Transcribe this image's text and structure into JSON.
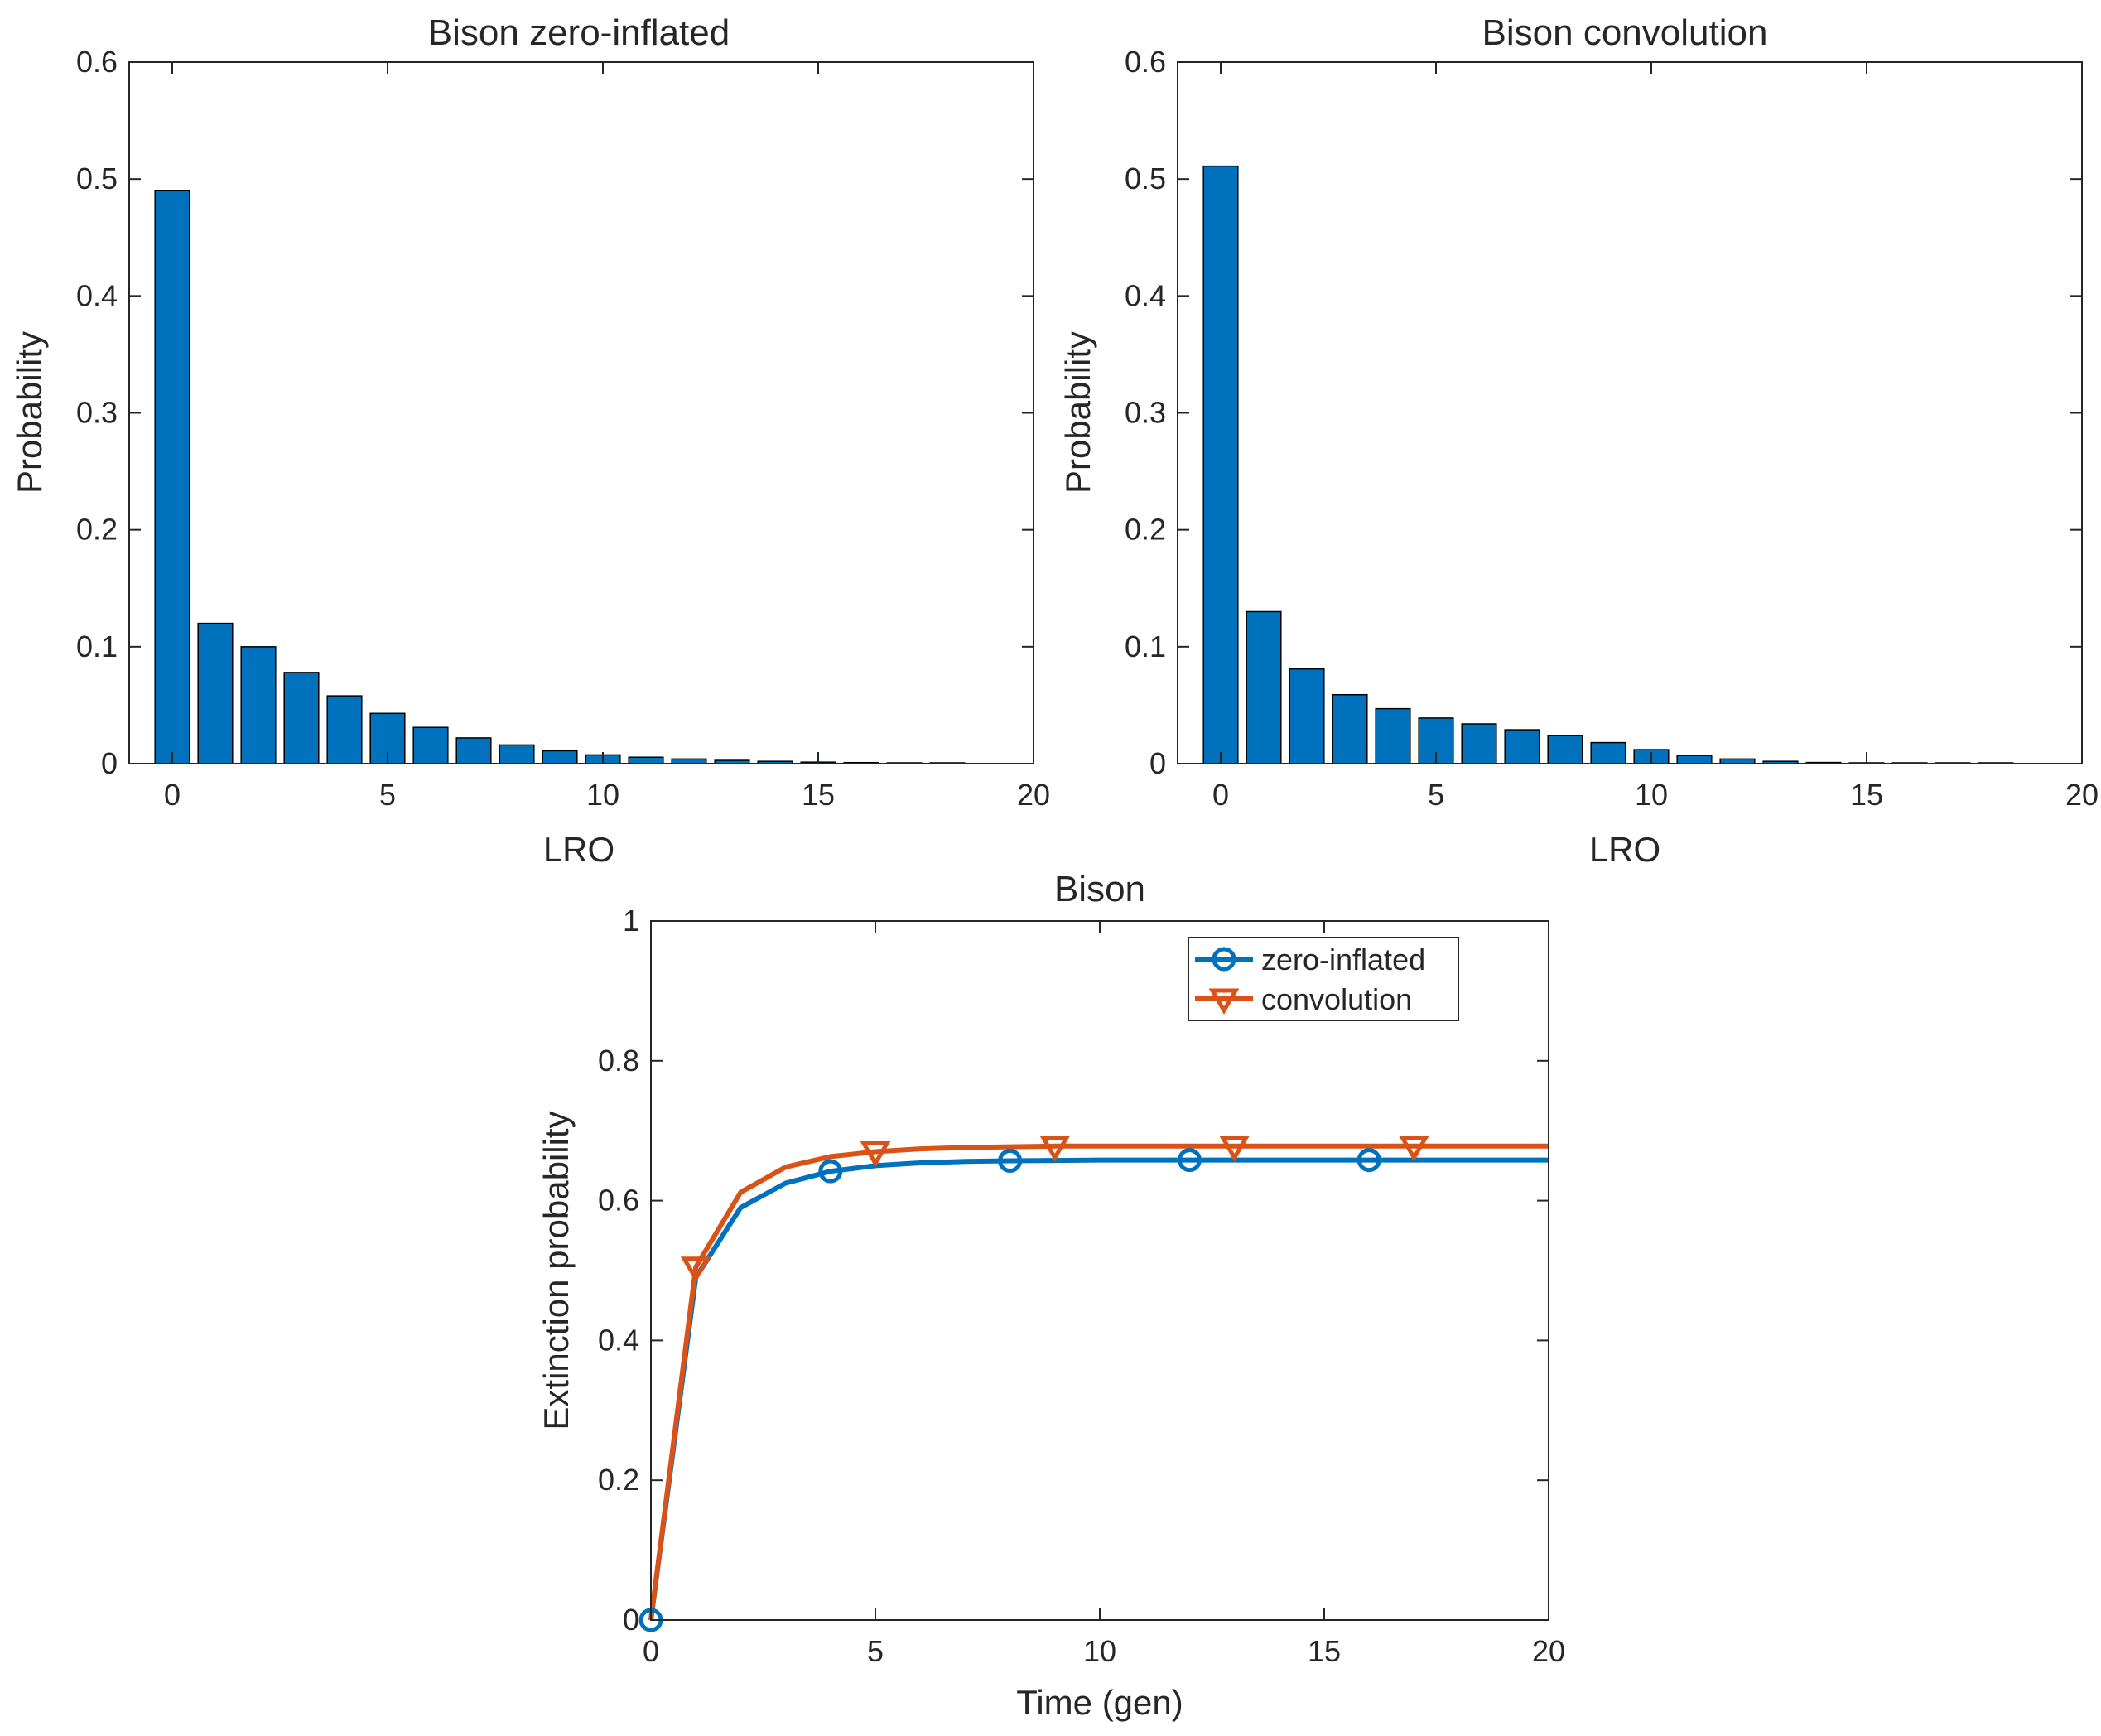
{
  "colors": {
    "series_blue": "#0072BD",
    "series_orange": "#D95319",
    "axis": "#262626"
  },
  "chart_data": [
    {
      "type": "bar",
      "title": "Bison zero-inflated",
      "xlabel": "LRO",
      "ylabel": "Probability",
      "xlim": [
        -1,
        20
      ],
      "ylim": [
        0,
        0.6
      ],
      "xticks": [
        0,
        5,
        10,
        15,
        20
      ],
      "yticks": [
        0,
        0.1,
        0.2,
        0.3,
        0.4,
        0.5,
        0.6
      ],
      "xtick_labels": [
        "0",
        "5",
        "10",
        "15",
        "20"
      ],
      "ytick_labels": [
        "0",
        "0.1",
        "0.2",
        "0.3",
        "0.4",
        "0.5",
        "0.6"
      ],
      "categories": [
        0,
        1,
        2,
        3,
        4,
        5,
        6,
        7,
        8,
        9,
        10,
        11,
        12,
        13,
        14,
        15,
        16,
        17,
        18
      ],
      "values": [
        0.49,
        0.12,
        0.1,
        0.078,
        0.058,
        0.043,
        0.031,
        0.022,
        0.016,
        0.011,
        0.0075,
        0.0055,
        0.004,
        0.0028,
        0.002,
        0.0013,
        0.0009,
        0.0006,
        0.0004
      ],
      "color": "#0072BD"
    },
    {
      "type": "bar",
      "title": "Bison convolution",
      "xlabel": "LRO",
      "ylabel": "Probability",
      "xlim": [
        -1,
        20
      ],
      "ylim": [
        0,
        0.6
      ],
      "xticks": [
        0,
        5,
        10,
        15,
        20
      ],
      "yticks": [
        0,
        0.1,
        0.2,
        0.3,
        0.4,
        0.5,
        0.6
      ],
      "xtick_labels": [
        "0",
        "5",
        "10",
        "15",
        "20"
      ],
      "ytick_labels": [
        "0",
        "0.1",
        "0.2",
        "0.3",
        "0.4",
        "0.5",
        "0.6"
      ],
      "categories": [
        0,
        1,
        2,
        3,
        4,
        5,
        6,
        7,
        8,
        9,
        10,
        11,
        12,
        13,
        14,
        15,
        16,
        17,
        18
      ],
      "values": [
        0.511,
        0.13,
        0.081,
        0.059,
        0.047,
        0.039,
        0.034,
        0.029,
        0.024,
        0.018,
        0.012,
        0.007,
        0.004,
        0.002,
        0.001,
        0.0005,
        0.0003,
        0.0001,
        0.0001
      ],
      "color": "#0072BD"
    },
    {
      "type": "line",
      "title": "Bison",
      "xlabel": "Time (gen)",
      "ylabel": "Extinction probability",
      "xlim": [
        0,
        20
      ],
      "ylim": [
        0,
        1
      ],
      "xticks": [
        0,
        5,
        10,
        15,
        20
      ],
      "yticks": [
        0,
        0.2,
        0.4,
        0.6,
        0.8,
        1
      ],
      "xtick_labels": [
        "0",
        "5",
        "10",
        "15",
        "20"
      ],
      "ytick_labels": [
        "0",
        "0.2",
        "0.4",
        "0.6",
        "0.8",
        "1"
      ],
      "legend_position": "top-right",
      "x": [
        0,
        1,
        2,
        3,
        4,
        5,
        6,
        7,
        8,
        9,
        10,
        11,
        12,
        13,
        14,
        15,
        16,
        17,
        18,
        19,
        20
      ],
      "series": [
        {
          "name": "zero-inflated",
          "marker": "circle",
          "marker_indices": [
            0,
            4,
            8,
            12,
            16
          ],
          "color": "#0072BD",
          "values": [
            0,
            0.49,
            0.59,
            0.625,
            0.642,
            0.65,
            0.654,
            0.656,
            0.657,
            0.6575,
            0.658,
            0.658,
            0.658,
            0.658,
            0.658,
            0.658,
            0.658,
            0.658,
            0.658,
            0.658,
            0.658
          ]
        },
        {
          "name": "convolution",
          "marker": "triangle-down",
          "marker_indices": [
            1,
            5,
            9,
            13,
            17
          ],
          "color": "#D95319",
          "values": [
            0,
            0.505,
            0.612,
            0.648,
            0.663,
            0.67,
            0.674,
            0.676,
            0.677,
            0.678,
            0.678,
            0.678,
            0.678,
            0.678,
            0.678,
            0.678,
            0.678,
            0.678,
            0.678,
            0.678,
            0.678
          ]
        }
      ]
    }
  ]
}
